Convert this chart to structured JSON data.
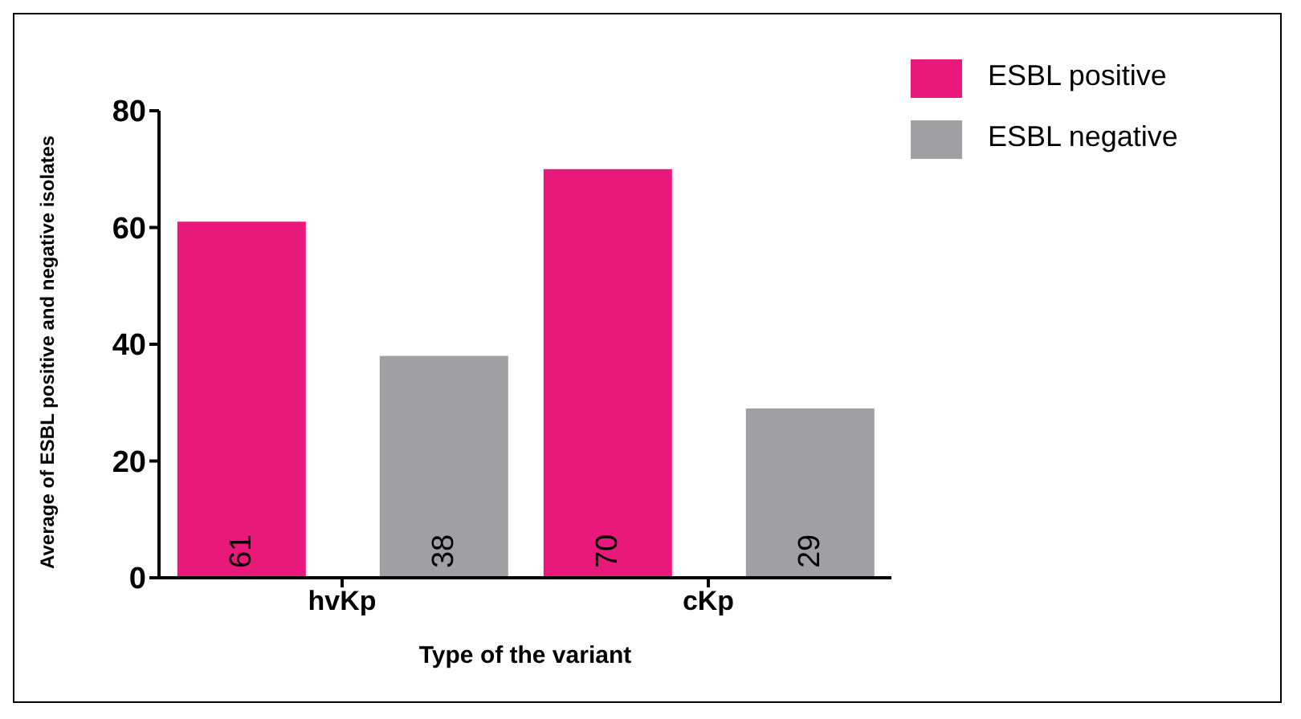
{
  "chart_data": {
    "type": "bar",
    "xlabel": "Type of the variant",
    "ylabel": "Average of ESBL positive and negative isolates",
    "categories": [
      "hvKp",
      "cKp"
    ],
    "series": [
      {
        "name": "ESBL positive",
        "color": "#e8197a",
        "values": [
          61,
          70
        ]
      },
      {
        "name": "ESBL negative",
        "color": "#a0a0a3",
        "values": [
          38,
          29
        ]
      }
    ],
    "ylim": [
      0,
      80
    ],
    "yticks": [
      0,
      20,
      40,
      60,
      80
    ],
    "legend": "top right",
    "data_labels": true
  }
}
